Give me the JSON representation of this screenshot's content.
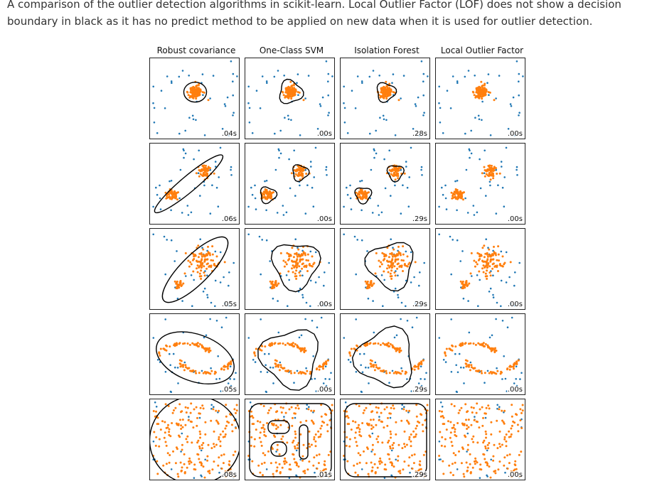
{
  "caption": "A comparison of the outlier detection algorithms in scikit-learn. Local Outlier Factor (LOF) does not show a decision boundary in black as it has no predict method to be applied on new data when it is used for outlier detection.",
  "colors": {
    "inlier": "#ff7f0e",
    "outlier": "#1f77b4",
    "boundary": "#000000"
  },
  "chart_data": {
    "type": "scatter",
    "columns": [
      "Robust covariance",
      "One-Class SVM",
      "Isolation Forest",
      "Local Outlier Factor"
    ],
    "rows": [
      {
        "dataset": "single blob",
        "times": [
          ".04s",
          ".00s",
          ".28s",
          ".00s"
        ]
      },
      {
        "dataset": "two blobs",
        "times": [
          ".06s",
          ".00s",
          ".29s",
          ".00s"
        ]
      },
      {
        "dataset": "blob and dense cluster",
        "times": [
          ".05s",
          ".00s",
          ".29s",
          ".00s"
        ]
      },
      {
        "dataset": "moons",
        "times": [
          ".05s",
          ".00s",
          ".29s",
          ".00s"
        ]
      },
      {
        "dataset": "uniform noise",
        "times": [
          ".08s",
          ".01s",
          ".29s",
          ".00s"
        ]
      }
    ],
    "boundary_shown": [
      true,
      true,
      true,
      false
    ],
    "xlim": [
      -7,
      7
    ],
    "ylim": [
      -7,
      7
    ]
  }
}
